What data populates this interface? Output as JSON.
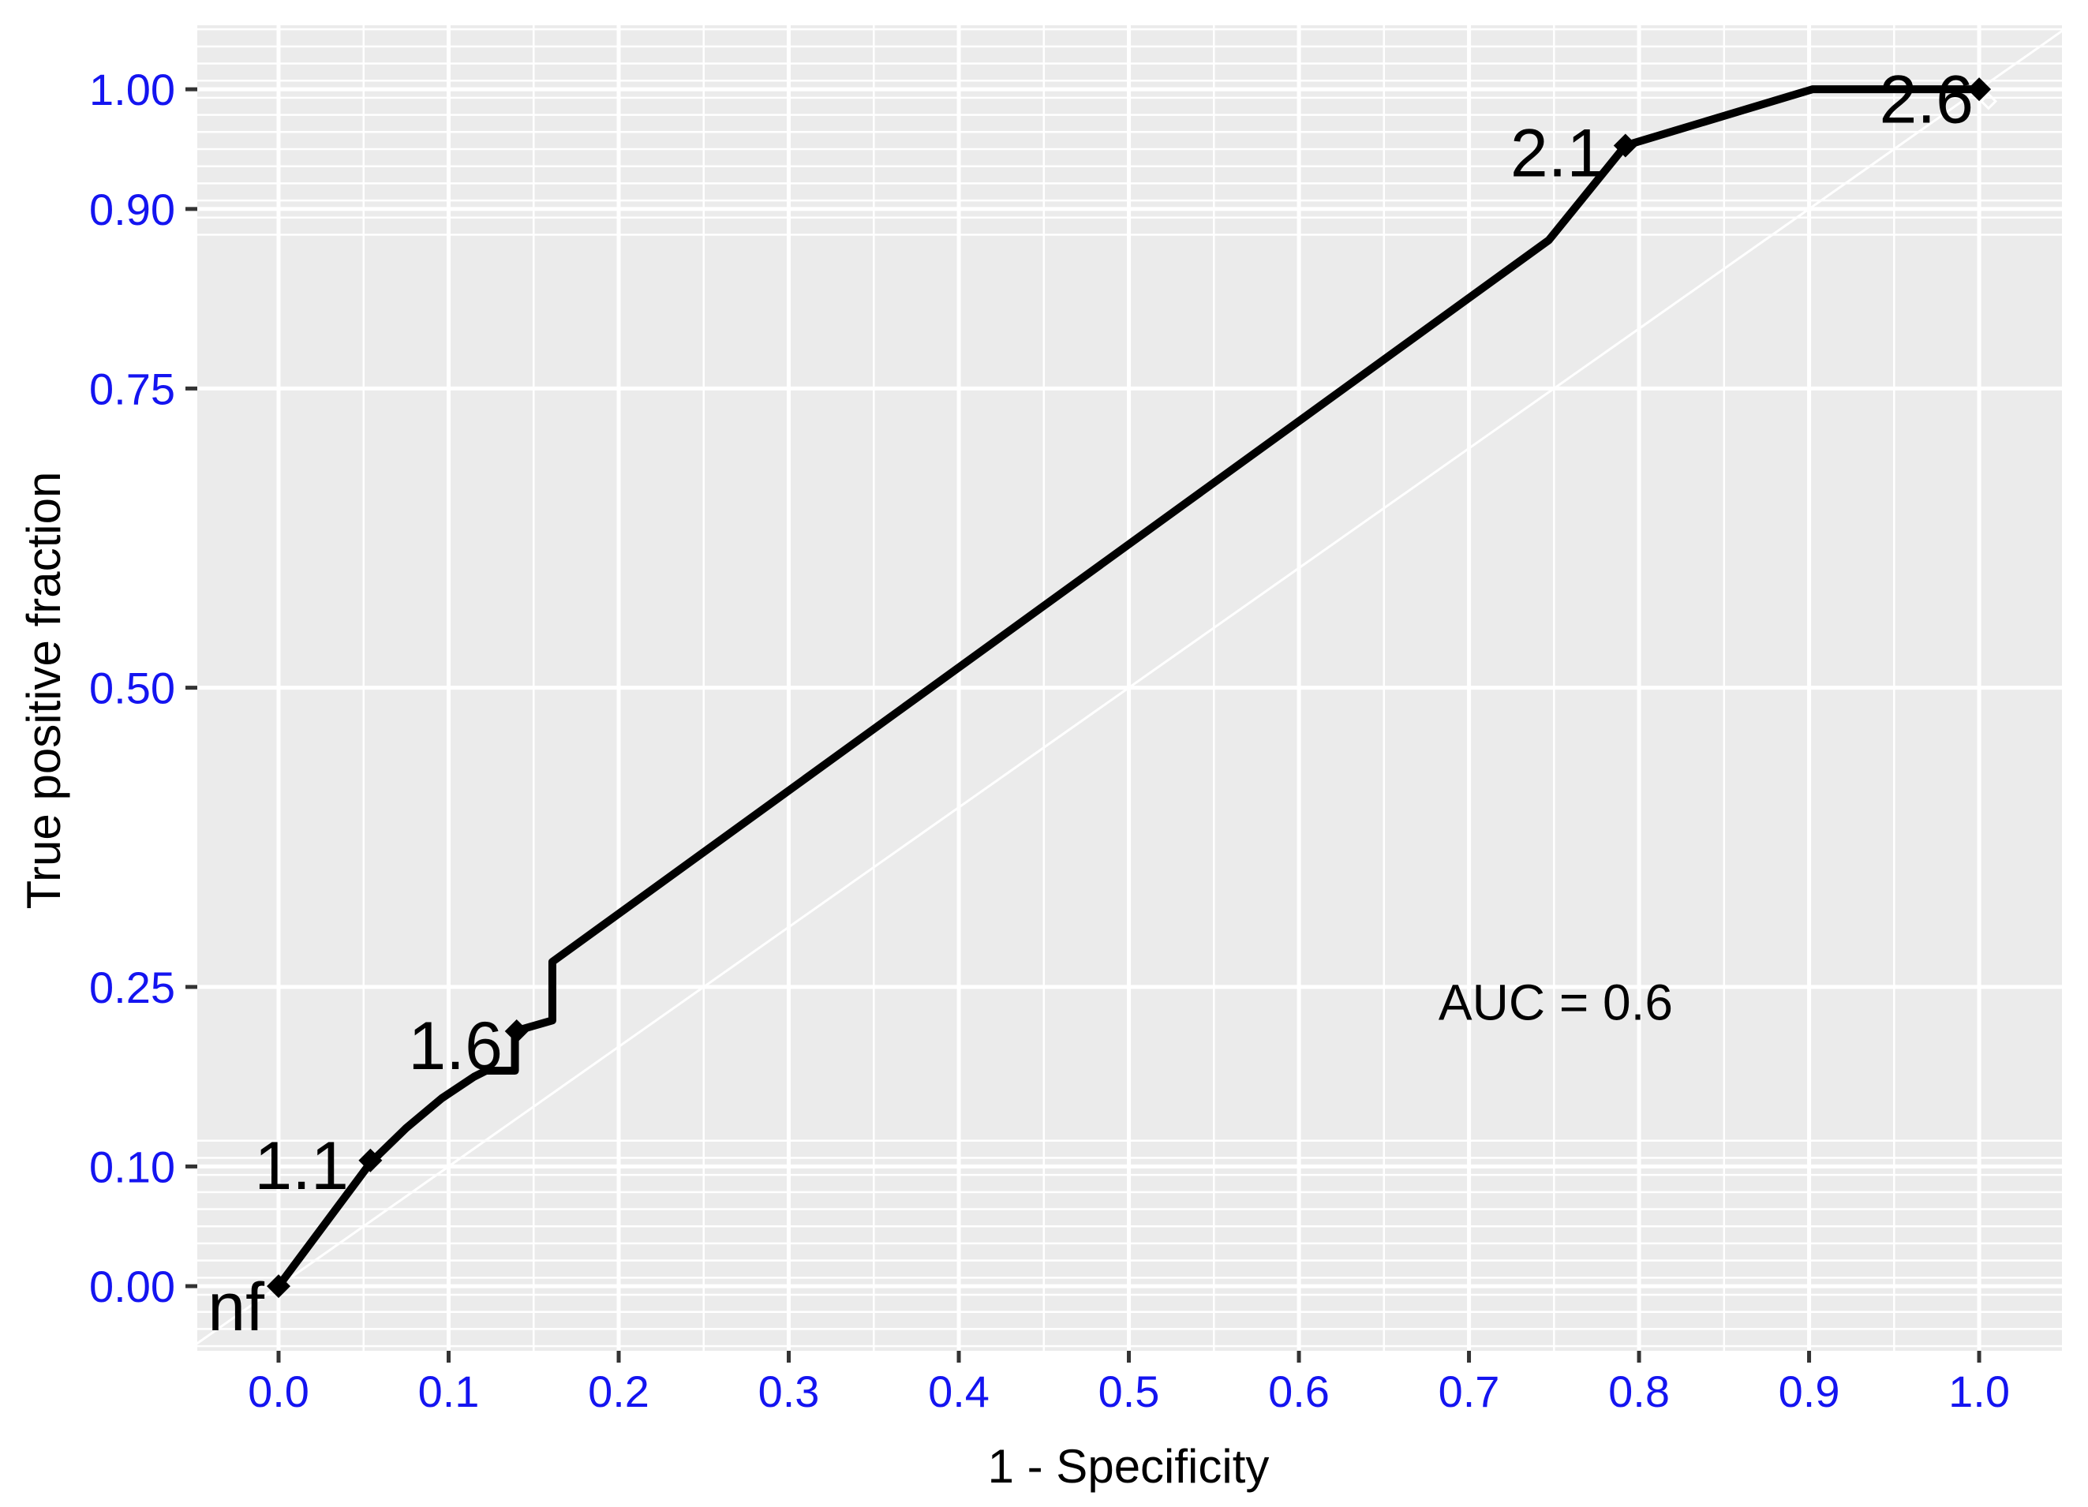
{
  "chart_data": {
    "type": "line",
    "subtype": "roc-curve",
    "title": "",
    "xlabel": "1 - Specificity",
    "ylabel": "True positive fraction",
    "annotation": {
      "text": "AUC = 0.6",
      "x": 0.751,
      "y": 0.237
    },
    "auc_value": 0.6,
    "xlim": [
      -0.0478,
      1.0487
    ],
    "ylim": [
      -0.054,
      1.0535
    ],
    "x_ticks": {
      "values": [
        0.0,
        0.1,
        0.2,
        0.3,
        0.4,
        0.5,
        0.6,
        0.7,
        0.8,
        0.9,
        1.0
      ],
      "labels": [
        "0.0",
        "0.1",
        "0.2",
        "0.3",
        "0.4",
        "0.5",
        "0.6",
        "0.7",
        "0.8",
        "0.9",
        "1.0"
      ]
    },
    "y_ticks": {
      "values": [
        0.0,
        0.1,
        0.25,
        0.5,
        0.75,
        0.9,
        1.0
      ],
      "labels": [
        "0.00",
        "0.10",
        "0.25",
        "0.50",
        "0.75",
        "0.90",
        "1.00"
      ]
    },
    "x_minor_step": 0.05,
    "y_dense_minor": {
      "top": {
        "start": 0.8785,
        "step": 0.0143,
        "count": 13
      },
      "bottom": {
        "start": 0.1215,
        "step": -0.0143,
        "count": 13
      }
    },
    "grid": "on",
    "legend": "none",
    "diagonal_reference": {
      "type": "chance-line",
      "from": [
        -0.054,
        -0.054
      ],
      "to": [
        1.0535,
        1.0535
      ]
    },
    "roc_curve": [
      [
        0.0,
        0.0
      ],
      [
        0.054,
        0.103
      ],
      [
        0.075,
        0.132
      ],
      [
        0.096,
        0.157
      ],
      [
        0.115,
        0.175
      ],
      [
        0.122,
        0.18
      ],
      [
        0.139,
        0.18
      ],
      [
        0.139,
        0.213
      ],
      [
        0.161,
        0.222
      ],
      [
        0.161,
        0.271
      ],
      [
        0.747,
        0.874
      ],
      [
        0.792,
        0.953
      ],
      [
        0.902,
        1.0
      ],
      [
        1.0,
        1.0
      ]
    ],
    "cutoffs": [
      {
        "label": "nf",
        "point": [
          0.0,
          0.0
        ],
        "label_pos": [
          -0.025,
          -0.017
        ]
      },
      {
        "label": "1.1",
        "point": [
          0.054,
          0.105
        ],
        "label_pos": [
          0.0135,
          0.101
        ]
      },
      {
        "label": "1.6",
        "point": [
          0.14,
          0.213
        ],
        "label_pos": [
          0.104,
          0.201
        ]
      },
      {
        "label": "2.1",
        "point": [
          0.792,
          0.953
        ],
        "label_pos": [
          0.752,
          0.947
        ]
      },
      {
        "label": "2.6",
        "point": [
          1.0,
          1.0
        ],
        "label_pos": [
          0.969,
          0.992
        ]
      }
    ],
    "end_marker_outline": {
      "pos": [
        1.0055,
        0.99
      ]
    },
    "colors": {
      "panel_background": "#EBEBEB",
      "outer_background": "#FFFFFF",
      "gridline": "#FFFFFF",
      "curve": "#000000",
      "chance_line": "#FFFFFF",
      "tick_label": "#1414F0",
      "tick_mark": "#333333",
      "axis_title": "#000000",
      "annotation_text": "#000000"
    }
  }
}
